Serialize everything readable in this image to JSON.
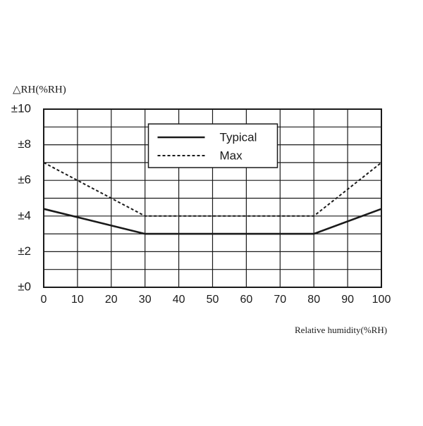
{
  "chart_data": {
    "type": "line",
    "ylabel": "△RH(%RH)",
    "xlabel": "Relative humidity(%RH)",
    "x": [
      0,
      30,
      80,
      100
    ],
    "series": [
      {
        "name": "Typical",
        "color": "#1a1a1a",
        "linestyle": "solid",
        "values": [
          4.4,
          3,
          3,
          4.4
        ]
      },
      {
        "name": "Max",
        "color": "#1a1a1a",
        "linestyle": "dashed",
        "values": [
          7,
          4,
          4,
          7
        ]
      }
    ],
    "xlim": [
      0,
      100
    ],
    "xticks": [
      0,
      10,
      20,
      30,
      40,
      50,
      60,
      70,
      80,
      90,
      100
    ],
    "ylim": [
      0,
      10
    ],
    "yticks": [
      {
        "value": 0,
        "label": "±0"
      },
      {
        "value": 2,
        "label": "±2"
      },
      {
        "value": 4,
        "label": "±4"
      },
      {
        "value": 6,
        "label": "±6"
      },
      {
        "value": 8,
        "label": "±8"
      },
      {
        "value": 10,
        "label": "±10"
      }
    ],
    "y_minor_ticks": [
      1,
      3,
      5,
      7,
      9
    ],
    "grid": true,
    "legend": "upper center"
  }
}
